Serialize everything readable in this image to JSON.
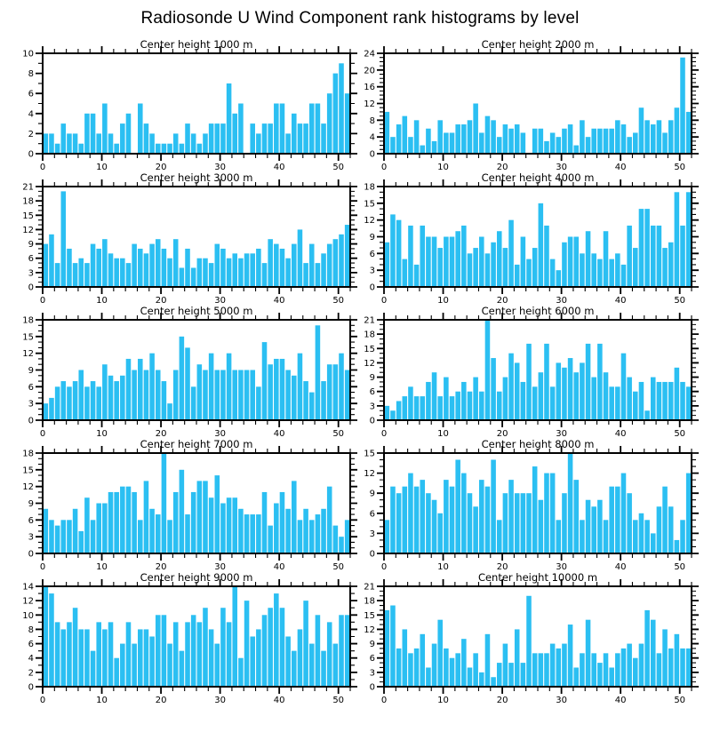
{
  "page_title": "Radiosonde U Wind Component rank histograms by level",
  "colors": {
    "bar": "#2BBFF2",
    "axis": "#000000",
    "background": "#ffffff",
    "text": "#000000"
  },
  "axis": {
    "x_max": 52,
    "n_bins": 52,
    "x_major_ticks": [
      0,
      10,
      20,
      30,
      40,
      50
    ],
    "x_minor_step": 2,
    "grid": "off",
    "legend": "none"
  },
  "chart_data": [
    {
      "type": "bar",
      "title": "Center height 1000 m",
      "ylim": [
        0,
        10
      ],
      "ystep": 2,
      "values": [
        2,
        2,
        1,
        3,
        2,
        2,
        1,
        4,
        4,
        2,
        5,
        2,
        1,
        3,
        4,
        0,
        5,
        3,
        2,
        1,
        1,
        1,
        2,
        1,
        3,
        2,
        1,
        2,
        3,
        3,
        3,
        7,
        4,
        5,
        0,
        3,
        2,
        3,
        3,
        5,
        5,
        2,
        4,
        3,
        3,
        5,
        5,
        3,
        6,
        8,
        9,
        6
      ]
    },
    {
      "type": "bar",
      "title": "Center height 2000 m",
      "ylim": [
        0,
        24
      ],
      "ystep": 4,
      "values": [
        10,
        4,
        7,
        9,
        4,
        8,
        2,
        6,
        3,
        8,
        5,
        5,
        7,
        7,
        8,
        12,
        5,
        9,
        8,
        4,
        7,
        6,
        7,
        5,
        0,
        6,
        6,
        3,
        5,
        4,
        6,
        7,
        2,
        8,
        4,
        6,
        6,
        6,
        6,
        8,
        7,
        4,
        5,
        11,
        8,
        7,
        8,
        5,
        8,
        11,
        23,
        10
      ]
    },
    {
      "type": "bar",
      "title": "Center height 3000 m",
      "ylim": [
        0,
        21
      ],
      "ystep": 3,
      "values": [
        9,
        11,
        5,
        20,
        8,
        5,
        6,
        5,
        9,
        8,
        10,
        7,
        6,
        6,
        5,
        9,
        8,
        7,
        9,
        10,
        8,
        6,
        10,
        4,
        8,
        4,
        6,
        6,
        5,
        9,
        8,
        6,
        7,
        6,
        7,
        7,
        8,
        5,
        10,
        9,
        8,
        6,
        9,
        12,
        5,
        9,
        5,
        7,
        9,
        10,
        11,
        13
      ]
    },
    {
      "type": "bar",
      "title": "Center height 4000 m",
      "ylim": [
        0,
        18
      ],
      "ystep": 3,
      "values": [
        8,
        13,
        12,
        5,
        11,
        4,
        11,
        9,
        9,
        7,
        9,
        9,
        10,
        11,
        6,
        7,
        9,
        6,
        8,
        10,
        7,
        12,
        4,
        9,
        5,
        7,
        15,
        11,
        5,
        3,
        8,
        9,
        9,
        6,
        10,
        6,
        5,
        10,
        5,
        6,
        4,
        11,
        7,
        14,
        14,
        11,
        11,
        7,
        8,
        17,
        11,
        17
      ]
    },
    {
      "type": "bar",
      "title": "Center height 5000 m",
      "ylim": [
        0,
        18
      ],
      "ystep": 3,
      "values": [
        3,
        4,
        6,
        7,
        6,
        7,
        9,
        6,
        7,
        6,
        10,
        8,
        7,
        8,
        11,
        9,
        11,
        9,
        12,
        9,
        7,
        3,
        9,
        15,
        13,
        6,
        10,
        9,
        12,
        9,
        9,
        12,
        9,
        9,
        9,
        9,
        6,
        14,
        10,
        11,
        11,
        9,
        8,
        12,
        7,
        5,
        17,
        7,
        10,
        10,
        12,
        9
      ]
    },
    {
      "type": "bar",
      "title": "Center height 6000 m",
      "ylim": [
        0,
        21
      ],
      "ystep": 3,
      "values": [
        3,
        2,
        4,
        5,
        7,
        5,
        5,
        8,
        10,
        5,
        9,
        5,
        6,
        8,
        6,
        9,
        6,
        21,
        13,
        6,
        9,
        14,
        12,
        8,
        16,
        7,
        10,
        16,
        7,
        12,
        11,
        13,
        10,
        12,
        16,
        9,
        16,
        10,
        7,
        7,
        14,
        9,
        6,
        8,
        2,
        9,
        8,
        8,
        8,
        11,
        8,
        7
      ]
    },
    {
      "type": "bar",
      "title": "Center height 7000 m",
      "ylim": [
        0,
        18
      ],
      "ystep": 3,
      "values": [
        8,
        6,
        5,
        6,
        6,
        8,
        4,
        10,
        6,
        9,
        9,
        11,
        11,
        12,
        12,
        11,
        6,
        13,
        8,
        7,
        18,
        6,
        11,
        15,
        7,
        11,
        13,
        13,
        10,
        14,
        9,
        10,
        10,
        8,
        7,
        7,
        7,
        11,
        5,
        9,
        11,
        8,
        13,
        6,
        8,
        6,
        7,
        8,
        12,
        5,
        3,
        6
      ]
    },
    {
      "type": "bar",
      "title": "Center height 8000 m",
      "ylim": [
        0,
        15
      ],
      "ystep": 3,
      "values": [
        5,
        10,
        9,
        10,
        12,
        10,
        11,
        9,
        8,
        6,
        11,
        10,
        14,
        12,
        9,
        7,
        11,
        10,
        14,
        5,
        9,
        11,
        9,
        9,
        9,
        13,
        8,
        12,
        12,
        5,
        9,
        15,
        11,
        5,
        8,
        7,
        8,
        5,
        10,
        10,
        12,
        9,
        5,
        6,
        5,
        3,
        7,
        10,
        7,
        2,
        5,
        12
      ]
    },
    {
      "type": "bar",
      "title": "Center height 9000 m",
      "ylim": [
        0,
        14
      ],
      "ystep": 2,
      "values": [
        14,
        13,
        9,
        8,
        9,
        11,
        8,
        8,
        5,
        9,
        8,
        9,
        4,
        6,
        9,
        6,
        8,
        8,
        7,
        10,
        10,
        6,
        9,
        5,
        9,
        10,
        9,
        11,
        8,
        6,
        11,
        9,
        14,
        4,
        12,
        7,
        8,
        10,
        11,
        13,
        11,
        7,
        5,
        8,
        12,
        6,
        10,
        5,
        9,
        6,
        10,
        10
      ]
    },
    {
      "type": "bar",
      "title": "Center height 10000 m",
      "ylim": [
        0,
        21
      ],
      "ystep": 3,
      "values": [
        16,
        17,
        8,
        12,
        7,
        8,
        11,
        4,
        9,
        14,
        8,
        6,
        7,
        10,
        4,
        7,
        3,
        11,
        2,
        5,
        9,
        5,
        12,
        5,
        19,
        7,
        7,
        7,
        9,
        8,
        9,
        13,
        4,
        7,
        14,
        7,
        5,
        7,
        4,
        7,
        8,
        9,
        6,
        9,
        16,
        14,
        7,
        12,
        8,
        11,
        8,
        8
      ]
    }
  ]
}
